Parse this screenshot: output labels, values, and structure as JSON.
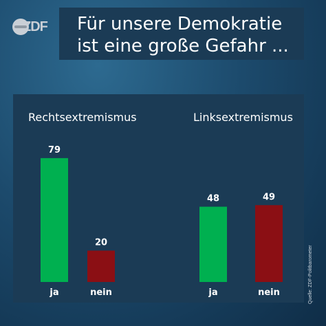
{
  "brand": {
    "logo_text": "ZDF"
  },
  "header": {
    "title_line1": "Für unsere Demokratie",
    "title_line2": "ist eine große Gefahr ..."
  },
  "source": "Quelle: ZDF-Politbarometer",
  "colors": {
    "ja": "#00b050",
    "nein": "#8b0f14",
    "panel": "#1b3b55"
  },
  "chart_data": [
    {
      "type": "bar",
      "title": "Rechtsextremismus",
      "categories": [
        "ja",
        "nein"
      ],
      "values": [
        79,
        20
      ],
      "colors": [
        "#00b050",
        "#8b0f14"
      ]
    },
    {
      "type": "bar",
      "title": "Linksextremismus",
      "categories": [
        "ja",
        "nein"
      ],
      "values": [
        48,
        49
      ],
      "colors": [
        "#00b050",
        "#8b0f14"
      ]
    }
  ]
}
